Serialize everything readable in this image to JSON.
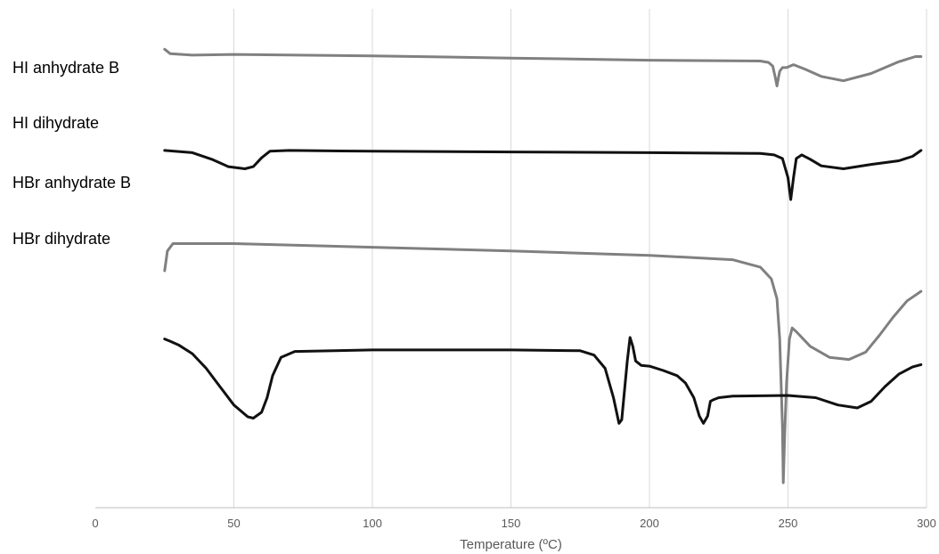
{
  "chart_data": {
    "type": "line",
    "xlabel": "Temperature (ºC)",
    "ylabel": "",
    "xlim": [
      0,
      300
    ],
    "x_ticks": [
      0,
      50,
      100,
      150,
      200,
      250,
      300
    ],
    "x_tick_labels": [
      "0",
      "50",
      "100",
      "150",
      "200",
      "250",
      "300"
    ],
    "y_axis_visible": false,
    "grid": "vertical",
    "legend": "labels at left of each trace",
    "series": [
      {
        "name": "HI anhydrate  B",
        "color": "#808080",
        "points": [
          [
            25,
            14.5
          ],
          [
            27,
            13.9
          ],
          [
            35,
            13.7
          ],
          [
            50,
            13.8
          ],
          [
            100,
            13.6
          ],
          [
            150,
            13.3
          ],
          [
            200,
            13.0
          ],
          [
            240,
            12.9
          ],
          [
            243,
            12.7
          ],
          [
            244.5,
            12.2
          ],
          [
            245.5,
            10.5
          ],
          [
            246,
            9.5
          ],
          [
            246.5,
            10.5
          ],
          [
            247,
            11.5
          ],
          [
            248,
            12.0
          ],
          [
            249.5,
            12.0
          ],
          [
            252,
            12.4
          ],
          [
            256,
            11.8
          ],
          [
            262,
            10.8
          ],
          [
            270,
            10.2
          ],
          [
            280,
            11.2
          ],
          [
            290,
            12.8
          ],
          [
            296,
            13.5
          ],
          [
            298,
            13.5
          ]
        ]
      },
      {
        "name": "HI dihydrate",
        "color": "#111111",
        "points": [
          [
            25,
            0.7
          ],
          [
            35,
            0.4
          ],
          [
            42,
            -0.5
          ],
          [
            48,
            -1.5
          ],
          [
            54,
            -1.8
          ],
          [
            57,
            -1.5
          ],
          [
            60,
            -0.3
          ],
          [
            63,
            0.6
          ],
          [
            70,
            0.7
          ],
          [
            100,
            0.6
          ],
          [
            150,
            0.5
          ],
          [
            200,
            0.4
          ],
          [
            240,
            0.3
          ],
          [
            245,
            0.1
          ],
          [
            248,
            -0.4
          ],
          [
            250,
            -3.0
          ],
          [
            251,
            -6.0
          ],
          [
            252,
            -3.0
          ],
          [
            253,
            -0.4
          ],
          [
            255,
            0.1
          ],
          [
            258,
            -0.5
          ],
          [
            262,
            -1.4
          ],
          [
            270,
            -1.8
          ],
          [
            280,
            -1.2
          ],
          [
            290,
            -0.7
          ],
          [
            295,
            -0.1
          ],
          [
            298,
            0.7
          ]
        ]
      },
      {
        "name": "HBr anhydrate  B",
        "color": "#808080",
        "points": [
          [
            25,
            -15.7
          ],
          [
            26,
            -13.0
          ],
          [
            28,
            -12.0
          ],
          [
            50,
            -12.0
          ],
          [
            100,
            -12.5
          ],
          [
            150,
            -13.0
          ],
          [
            200,
            -13.6
          ],
          [
            230,
            -14.2
          ],
          [
            240,
            -15.2
          ],
          [
            244,
            -16.8
          ],
          [
            246,
            -19.5
          ],
          [
            247,
            -25.0
          ],
          [
            248,
            -37.0
          ],
          [
            248.3,
            -44.6
          ],
          [
            248.8,
            -38.0
          ],
          [
            249.5,
            -31.0
          ],
          [
            250.5,
            -25.0
          ],
          [
            251.5,
            -23.5
          ],
          [
            253,
            -24.0
          ],
          [
            258,
            -26.0
          ],
          [
            265,
            -27.5
          ],
          [
            272,
            -27.8
          ],
          [
            278,
            -26.8
          ],
          [
            283,
            -24.5
          ],
          [
            288,
            -22.0
          ],
          [
            293,
            -19.8
          ],
          [
            298,
            -18.5
          ]
        ]
      },
      {
        "name": "HBr dihydrate",
        "color": "#111111",
        "points": [
          [
            25,
            -25.0
          ],
          [
            27,
            -25.3
          ],
          [
            30,
            -25.8
          ],
          [
            35,
            -27.0
          ],
          [
            40,
            -29.0
          ],
          [
            45,
            -31.5
          ],
          [
            50,
            -34.0
          ],
          [
            55,
            -35.6
          ],
          [
            57,
            -35.8
          ],
          [
            60,
            -35.0
          ],
          [
            62,
            -33.0
          ],
          [
            64,
            -30.0
          ],
          [
            67,
            -27.5
          ],
          [
            72,
            -26.7
          ],
          [
            100,
            -26.5
          ],
          [
            150,
            -26.5
          ],
          [
            175,
            -26.6
          ],
          [
            180,
            -27.2
          ],
          [
            184,
            -29.0
          ],
          [
            187,
            -33.0
          ],
          [
            189,
            -36.5
          ],
          [
            190,
            -36.0
          ],
          [
            191,
            -32.0
          ],
          [
            192,
            -28.0
          ],
          [
            193,
            -24.8
          ],
          [
            194,
            -26.0
          ],
          [
            195,
            -28.0
          ],
          [
            197,
            -28.6
          ],
          [
            200,
            -28.7
          ],
          [
            205,
            -29.3
          ],
          [
            210,
            -30.0
          ],
          [
            213,
            -31.0
          ],
          [
            216,
            -33.0
          ],
          [
            218,
            -35.5
          ],
          [
            219.5,
            -36.5
          ],
          [
            221,
            -35.5
          ],
          [
            222,
            -33.5
          ],
          [
            223,
            -33.3
          ],
          [
            225,
            -33.0
          ],
          [
            230,
            -32.8
          ],
          [
            250,
            -32.7
          ],
          [
            260,
            -33.0
          ],
          [
            268,
            -34.0
          ],
          [
            275,
            -34.4
          ],
          [
            280,
            -33.5
          ],
          [
            285,
            -31.5
          ],
          [
            290,
            -29.8
          ],
          [
            295,
            -28.8
          ],
          [
            298,
            -28.5
          ]
        ]
      }
    ]
  }
}
